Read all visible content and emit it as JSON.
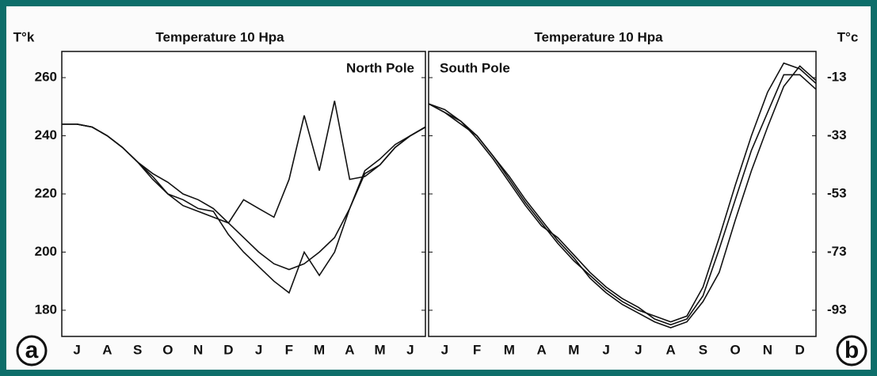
{
  "chart_data": [
    {
      "type": "line",
      "title": "Temperature 10 Hpa",
      "y_label": "T°k",
      "annotation": "North Pole",
      "panel_label": "a",
      "yaxis_side": "left",
      "x": [
        0,
        0.5,
        1,
        1.5,
        2,
        2.5,
        3,
        3.5,
        4,
        4.5,
        5,
        5.5,
        6,
        6.5,
        7,
        7.5,
        8,
        8.5,
        9,
        9.5,
        10,
        10.5,
        11,
        11.5,
        12
      ],
      "xlim": [
        0,
        12
      ],
      "xticks": [
        {
          "value": 0.5,
          "label": "J"
        },
        {
          "value": 1.5,
          "label": "A"
        },
        {
          "value": 2.5,
          "label": "S"
        },
        {
          "value": 3.5,
          "label": "O"
        },
        {
          "value": 4.5,
          "label": "N"
        },
        {
          "value": 5.5,
          "label": "D"
        },
        {
          "value": 6.5,
          "label": "J"
        },
        {
          "value": 7.5,
          "label": "F"
        },
        {
          "value": 8.5,
          "label": "M"
        },
        {
          "value": 9.5,
          "label": "A"
        },
        {
          "value": 10.5,
          "label": "M"
        },
        {
          "value": 11.5,
          "label": "J"
        }
      ],
      "ylim": [
        171,
        269
      ],
      "yticks": [
        180,
        200,
        220,
        240,
        260
      ],
      "series": [
        {
          "color": "#111111",
          "values": [
            244,
            244,
            243,
            240,
            236,
            231,
            226,
            220,
            216,
            214,
            212,
            210,
            205,
            200,
            196,
            194,
            196,
            200,
            205,
            215,
            228,
            232,
            237,
            240,
            243
          ]
        },
        {
          "color": "#111111",
          "values": [
            244,
            244,
            243,
            240,
            236,
            231,
            225,
            220,
            218,
            215,
            214,
            206,
            200,
            195,
            190,
            186,
            200,
            192,
            200,
            215,
            227,
            230,
            236,
            240,
            243
          ]
        },
        {
          "color": "#111111",
          "values": [
            244,
            244,
            243,
            240,
            236,
            231,
            227,
            224,
            220,
            218,
            215,
            210,
            218,
            215,
            212,
            225,
            247,
            228,
            252,
            225,
            226,
            230,
            236,
            240,
            243
          ]
        }
      ]
    },
    {
      "type": "line",
      "title": "Temperature 10 Hpa",
      "y_label": "T°c",
      "annotation": "South Pole",
      "panel_label": "b",
      "yaxis_side": "right",
      "x": [
        0,
        0.5,
        1,
        1.5,
        2,
        2.5,
        3,
        3.5,
        4,
        4.5,
        5,
        5.5,
        6,
        6.5,
        7,
        7.5,
        8,
        8.5,
        9,
        9.5,
        10,
        10.5,
        11,
        11.5,
        12
      ],
      "xlim": [
        0,
        12
      ],
      "xticks": [
        {
          "value": 0.5,
          "label": "J"
        },
        {
          "value": 1.5,
          "label": "F"
        },
        {
          "value": 2.5,
          "label": "M"
        },
        {
          "value": 3.5,
          "label": "A"
        },
        {
          "value": 4.5,
          "label": "M"
        },
        {
          "value": 5.5,
          "label": "J"
        },
        {
          "value": 6.5,
          "label": "J"
        },
        {
          "value": 7.5,
          "label": "A"
        },
        {
          "value": 8.5,
          "label": "S"
        },
        {
          "value": 9.5,
          "label": "O"
        },
        {
          "value": 10.5,
          "label": "N"
        },
        {
          "value": 11.5,
          "label": "D"
        }
      ],
      "ylim": [
        -102,
        -4
      ],
      "yticks": [
        -13,
        -33,
        -53,
        -73,
        -93
      ],
      "series": [
        {
          "color": "#111111",
          "values": [
            -22,
            -25,
            -28,
            -33,
            -40,
            -48,
            -56,
            -63,
            -70,
            -76,
            -81,
            -86,
            -90,
            -93,
            -95,
            -97,
            -95,
            -85,
            -68,
            -50,
            -33,
            -18,
            -8,
            -10,
            -15
          ]
        },
        {
          "color": "#111111",
          "values": [
            -22,
            -24,
            -28,
            -34,
            -41,
            -49,
            -57,
            -64,
            -68,
            -74,
            -80,
            -85,
            -89,
            -92,
            -96,
            -98,
            -96,
            -88,
            -72,
            -55,
            -38,
            -25,
            -12,
            -12,
            -17
          ]
        },
        {
          "color": "#111111",
          "values": [
            -22,
            -25,
            -29,
            -33,
            -40,
            -47,
            -55,
            -62,
            -69,
            -75,
            -82,
            -87,
            -91,
            -94,
            -97,
            -99,
            -97,
            -90,
            -80,
            -62,
            -45,
            -30,
            -16,
            -9,
            -14
          ]
        }
      ]
    }
  ]
}
